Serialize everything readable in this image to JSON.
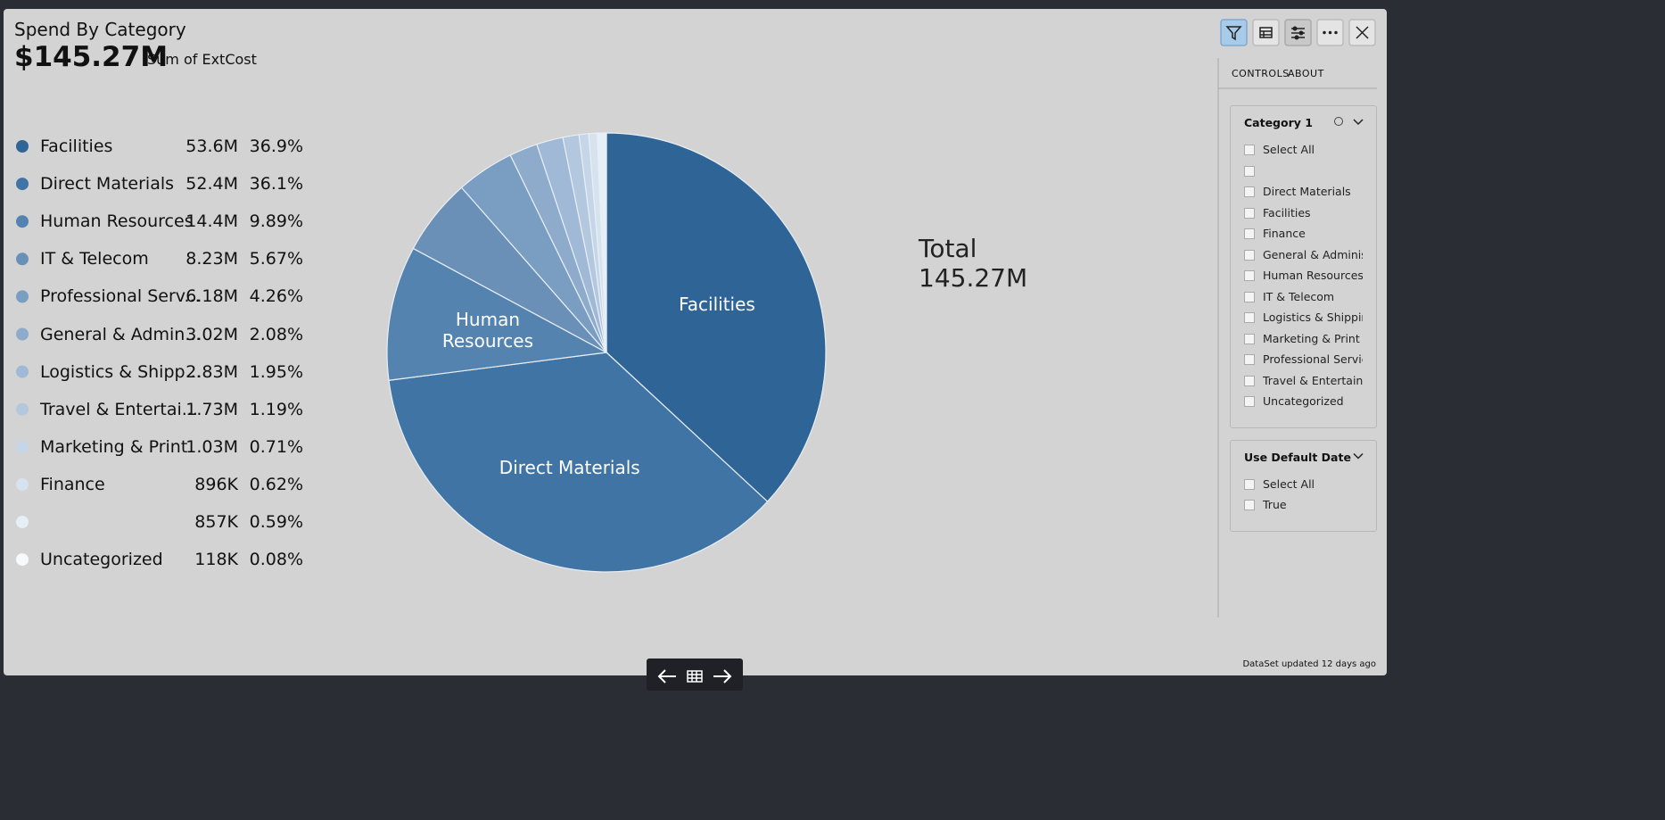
{
  "header": {
    "title": "Spend By Category",
    "total": "$145.27M",
    "measure": "Sum of ExtCost"
  },
  "chart_data": {
    "type": "pie",
    "categories": [
      "Facilities",
      "Direct Materials",
      "Human Resources",
      "IT & Telecom",
      "Professional Serv...",
      "General & Admin...",
      "Logistics & Shipp...",
      "Travel & Entertai...",
      "Marketing & Print",
      "Finance",
      null,
      "Uncategorized"
    ],
    "values": [
      36.9,
      36.1,
      9.89,
      5.67,
      4.26,
      2.08,
      1.95,
      1.19,
      0.71,
      0.62,
      0.59,
      0.08
    ],
    "value_labels": [
      "36.9%",
      "36.1%",
      "9.89%",
      "5.67%",
      "4.26%",
      "2.08%",
      "1.95%",
      "1.19%",
      "0.71%",
      "0.62%",
      "0.59%",
      "0.08%"
    ],
    "amounts": [
      "53.6M",
      "52.4M",
      "14.4M",
      "8.23M",
      "6.18M",
      "3.02M",
      "2.83M",
      "1.73M",
      "1.03M",
      "896K",
      "857K",
      "118K"
    ],
    "colors": [
      "#2f6496",
      "#3f74a5",
      "#5583b0",
      "#6a90b8",
      "#7a9dc2",
      "#8eabcc",
      "#a0b9d6",
      "#b3c7de",
      "#c6d6e8",
      "#d6e2ee",
      "#e6eef6",
      "#f7f9fc"
    ],
    "total_label": "Total",
    "total_value": "145.27M"
  },
  "controls": {
    "tabs": [
      "CONTROLS",
      "ABOUT"
    ],
    "filters": [
      {
        "title": "Category 1",
        "options": [
          "Select All",
          null,
          "Direct Materials",
          "Facilities",
          "Finance",
          "General & Administrati",
          "Human Resources",
          "IT & Telecom",
          "Logistics & Shipping",
          "Marketing & Print",
          "Professional Services...",
          "Travel & Entertainmen",
          "Uncategorized"
        ]
      },
      {
        "title": "Use Default Date",
        "options": [
          "Select All",
          "True"
        ]
      }
    ]
  },
  "footer": "DataSet updated 12 days ago"
}
